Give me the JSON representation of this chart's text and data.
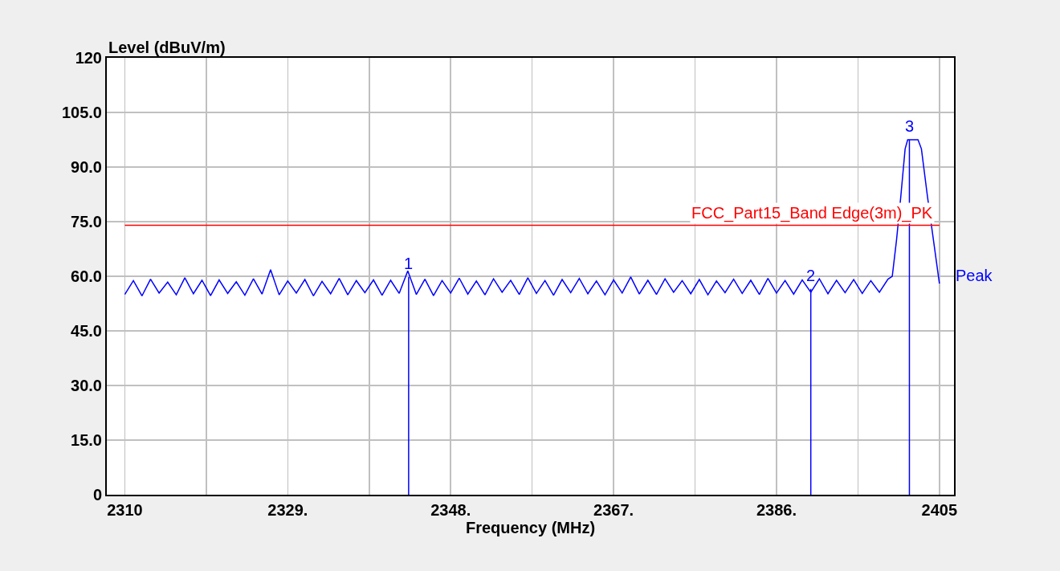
{
  "chart_data": {
    "type": "line",
    "xlabel": "Frequency (MHz)",
    "ylabel": "Level (dBuV/m)",
    "xlim": [
      2307.9,
      2406.7
    ],
    "ylim": [
      0,
      120
    ],
    "xticks": [
      2310,
      {
        "value": 2319.5,
        "label": null
      },
      {
        "value": 2329,
        "label": "2329."
      },
      {
        "value": 2338.5,
        "label": null
      },
      {
        "value": 2348,
        "label": "2348."
      },
      {
        "value": 2357.5,
        "label": null
      },
      {
        "value": 2367,
        "label": "2367."
      },
      {
        "value": 2376.5,
        "label": null
      },
      {
        "value": 2386,
        "label": "2386."
      },
      {
        "value": 2395.5,
        "label": null
      },
      2405
    ],
    "yticks": [
      0,
      {
        "value": 15,
        "label": "15.0"
      },
      {
        "value": 30,
        "label": "30.0"
      },
      {
        "value": 45,
        "label": "45.0"
      },
      {
        "value": 60,
        "label": "60.0"
      },
      {
        "value": 75,
        "label": "75.0"
      },
      {
        "value": 90,
        "label": "90.0"
      },
      {
        "value": 105,
        "label": "105.0"
      },
      120
    ],
    "grid": true,
    "legend": false,
    "series": [
      {
        "name": "Peak",
        "color": "#0000ff",
        "x": [
          2310,
          2311,
          2312,
          2313,
          2314,
          2315,
          2316,
          2317,
          2318,
          2319,
          2320,
          2321,
          2322,
          2323,
          2324,
          2325,
          2326,
          2327,
          2328,
          2329,
          2330,
          2331,
          2332,
          2333,
          2334,
          2335,
          2336,
          2337,
          2338,
          2339,
          2340,
          2341,
          2342,
          2343,
          2344,
          2345,
          2346,
          2347,
          2348,
          2349,
          2350,
          2351,
          2352,
          2353,
          2354,
          2355,
          2356,
          2357,
          2358,
          2359,
          2360,
          2361,
          2362,
          2363,
          2364,
          2365,
          2366,
          2367,
          2368,
          2369,
          2370,
          2371,
          2372,
          2373,
          2374,
          2375,
          2376,
          2377,
          2378,
          2379,
          2380,
          2381,
          2382,
          2383,
          2384,
          2385,
          2386,
          2387,
          2388,
          2389,
          2390,
          2391,
          2392,
          2393,
          2394,
          2395,
          2396,
          2397,
          2398,
          2399,
          2399.5,
          2400,
          2400.5,
          2401,
          2401.3,
          2402.5,
          2402.9,
          2403.6,
          2404.3,
          2405
        ],
        "values": [
          55.0,
          58.8,
          54.6,
          59.2,
          55.4,
          58.4,
          54.9,
          59.6,
          55.2,
          58.9,
          54.7,
          59.0,
          55.3,
          58.5,
          54.8,
          59.3,
          55.1,
          61.8,
          54.9,
          58.7,
          55.4,
          59.1,
          54.6,
          58.6,
          55.2,
          59.4,
          54.9,
          58.8,
          55.5,
          59.0,
          54.8,
          58.9,
          55.3,
          61.5,
          55.0,
          59.2,
          54.7,
          58.8,
          55.4,
          59.5,
          55.1,
          58.7,
          54.9,
          59.3,
          55.6,
          58.9,
          55.0,
          59.6,
          55.3,
          58.8,
          54.8,
          59.1,
          55.5,
          59.4,
          55.2,
          58.7,
          54.9,
          59.0,
          55.4,
          59.8,
          55.1,
          58.9,
          55.0,
          59.3,
          55.6,
          58.8,
          55.2,
          59.1,
          54.9,
          58.7,
          55.5,
          59.2,
          55.3,
          58.9,
          55.0,
          59.4,
          55.4,
          58.8,
          55.1,
          59.0,
          55.6,
          59.3,
          55.2,
          58.9,
          55.5,
          59.1,
          55.3,
          58.8,
          55.6,
          59.2,
          60,
          70,
          82,
          95,
          97.5,
          97.5,
          95,
          82,
          70,
          58
        ]
      },
      {
        "color": "#0000ff",
        "x": [
          2343.1,
          2343.1
        ],
        "values": [
          0,
          59.8
        ]
      },
      {
        "color": "#0000ff",
        "x": [
          2390.0,
          2390.0
        ],
        "values": [
          0,
          56.5
        ]
      },
      {
        "color": "#0000ff",
        "x": [
          2401.5,
          2401.5
        ],
        "values": [
          0,
          97.5
        ]
      }
    ],
    "annotations": [
      {
        "text": "1",
        "x": 2343.1,
        "y": 59.8
      },
      {
        "text": "2",
        "x": 2390.0,
        "y": 56.5
      },
      {
        "text": "3",
        "x": 2401.5,
        "y": 97.5
      }
    ],
    "ref_lines": [
      {
        "axis": "y",
        "value": 74,
        "label": "FCC_Part15_Band Edge(3m)_PK",
        "color": "#ff0000"
      }
    ]
  }
}
